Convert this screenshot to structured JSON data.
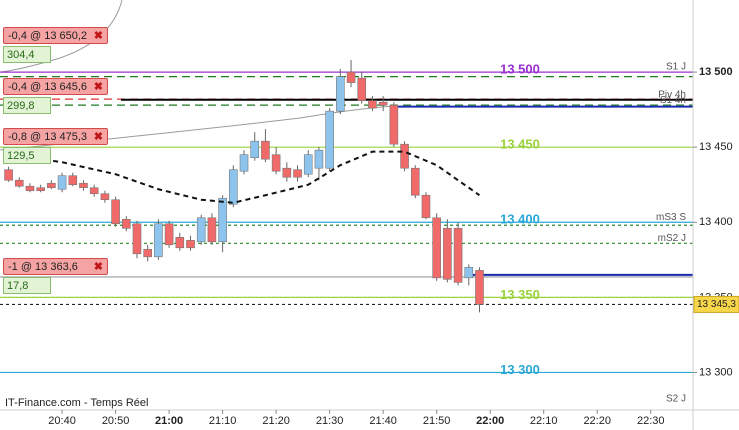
{
  "chart_data": {
    "type": "candlestick",
    "source": "IT-Finance.com - Temps Réel",
    "xlim": [
      1228.4,
      1357.9
    ],
    "ylim": [
      13275,
      13548
    ],
    "xticks": [
      {
        "value": 1240,
        "label": "20:40"
      },
      {
        "value": 1250,
        "label": "20:50"
      },
      {
        "value": 1260,
        "label": "21:00",
        "bold": true
      },
      {
        "value": 1270,
        "label": "21:10"
      },
      {
        "value": 1280,
        "label": "21:20"
      },
      {
        "value": 1290,
        "label": "21:30"
      },
      {
        "value": 1300,
        "label": "21:40"
      },
      {
        "value": 1310,
        "label": "21:50"
      },
      {
        "value": 1320,
        "label": "22:00",
        "bold": true
      },
      {
        "value": 1330,
        "label": "22:10"
      },
      {
        "value": 1340,
        "label": "22:20"
      },
      {
        "value": 1350,
        "label": "22:30"
      }
    ],
    "yticks": [
      {
        "value": 13500,
        "label": "13 500",
        "bold": true
      },
      {
        "value": 13450,
        "label": "13 450"
      },
      {
        "value": 13400,
        "label": "13 400"
      },
      {
        "value": 13350,
        "label": "13 350"
      },
      {
        "value": 13300,
        "label": "13 300"
      }
    ],
    "up_color": "#8cc4ee",
    "down_color": "#f06a6a",
    "candles": {
      "x": [
        1230,
        1232,
        1234,
        1236,
        1238,
        1240,
        1242,
        1244,
        1246,
        1248,
        1250,
        1252,
        1254,
        1256,
        1258,
        1260,
        1262,
        1264,
        1266,
        1268,
        1270,
        1272,
        1274,
        1276,
        1278,
        1280,
        1282,
        1284,
        1286,
        1288,
        1290,
        1292,
        1294,
        1296,
        1298,
        1300,
        1302,
        1304,
        1306,
        1308,
        1310,
        1312,
        1314,
        1316,
        1318
      ],
      "open": [
        13435,
        13428,
        13424,
        13423,
        13426,
        13422,
        13431,
        13426,
        13423,
        13419,
        13415,
        13402,
        13399,
        13382,
        13377,
        13399,
        13390,
        13388,
        13387,
        13403,
        13387,
        13412,
        13434,
        13443,
        13454,
        13445,
        13436,
        13435,
        13432,
        13436,
        13436,
        13474,
        13500,
        13496,
        13481,
        13480,
        13478,
        13452,
        13436,
        13418,
        13403,
        13396,
        13396,
        13363,
        13368
      ],
      "high": [
        13437,
        13430,
        13426,
        13425,
        13428,
        13433,
        13433,
        13428,
        13425,
        13421,
        13417,
        13404,
        13401,
        13385,
        13402,
        13401,
        13393,
        13391,
        13405,
        13406,
        13418,
        13438,
        13448,
        13460,
        13462,
        13450,
        13440,
        13438,
        13448,
        13450,
        13476,
        13502,
        13508,
        13500,
        13484,
        13484,
        13480,
        13454,
        13438,
        13420,
        13406,
        13402,
        13400,
        13372,
        13370
      ],
      "low": [
        13427,
        13423,
        13420,
        13420,
        13422,
        13420,
        13424,
        13421,
        13417,
        13413,
        13397,
        13394,
        13376,
        13374,
        13375,
        13383,
        13381,
        13381,
        13385,
        13385,
        13380,
        13410,
        13432,
        13441,
        13440,
        13432,
        13427,
        13427,
        13430,
        13428,
        13434,
        13472,
        13490,
        13479,
        13474,
        13474,
        13450,
        13434,
        13416,
        13402,
        13361,
        13360,
        13358,
        13358,
        13340
      ],
      "close": [
        13428,
        13424,
        13421,
        13421,
        13423,
        13431,
        13425,
        13423,
        13419,
        13415,
        13399,
        13396,
        13379,
        13377,
        13399,
        13385,
        13383,
        13383,
        13403,
        13387,
        13416,
        13435,
        13445,
        13454,
        13442,
        13434,
        13430,
        13430,
        13445,
        13448,
        13474,
        13497,
        13493,
        13481,
        13476,
        13478,
        13452,
        13436,
        13418,
        13403,
        13363,
        13362,
        13360,
        13370,
        13345.3
      ]
    },
    "ma": {
      "color": "#111111",
      "x": [
        1230,
        1240,
        1250,
        1258,
        1266,
        1272,
        1278,
        1286,
        1292,
        1298,
        1304,
        1310,
        1314,
        1318
      ],
      "values": [
        13445,
        13440,
        13432,
        13422,
        13415,
        13413,
        13418,
        13425,
        13438,
        13447,
        13447,
        13438,
        13428,
        13418
      ]
    },
    "levels": [
      {
        "value": 13500,
        "color": "#9b30d0",
        "dash": "none",
        "label": "13 500",
        "tag": "S1 J"
      },
      {
        "value": 13497,
        "color": "#1f7a1f",
        "dash": "8 5"
      },
      {
        "value": 13482,
        "color": "#e03030",
        "dash": "8 5"
      },
      {
        "value": 13481.6,
        "color": "#000000",
        "dash": "none",
        "from": 1251,
        "tag": "Piv 4h"
      },
      {
        "value": 13478,
        "color": "#1f7a1f",
        "dash": "8 5",
        "tag": "S1 4h"
      },
      {
        "value": 13477,
        "color": "#1a2ab0",
        "dash": "none",
        "from": 1302
      },
      {
        "value": 13450,
        "color": "#9ad23c",
        "dash": "none",
        "label": "13 450"
      },
      {
        "value": 13400,
        "color": "#2aa8d8",
        "dash": "none",
        "label": "13 400",
        "tag": "mS3 S"
      },
      {
        "value": 13398,
        "color": "#2a8a2a",
        "dash": "3 3"
      },
      {
        "value": 13386,
        "color": "#2a8a2a",
        "dash": "3 3",
        "tag": "mS2 J"
      },
      {
        "value": 13365,
        "color": "#1a2ab0",
        "dash": "none",
        "from": 1316
      },
      {
        "value": 13363.6,
        "color": "#999999",
        "dash": "none"
      },
      {
        "value": 13350,
        "color": "#9ad23c",
        "dash": "none",
        "label": "13 350"
      },
      {
        "value": 13345.3,
        "color": "#222222",
        "dash": "3 3"
      },
      {
        "value": 13300,
        "color": "#2aa8d8",
        "dash": "none",
        "label": "13 300"
      },
      {
        "value": 13279,
        "color": "#ffffff",
        "dash": "none",
        "tag": "S2 J"
      }
    ],
    "last": {
      "value": 13345.3,
      "label": "13 345,3"
    },
    "orders": [
      {
        "label": "-0,4 @ 13 650,2",
        "pnl": "304,4"
      },
      {
        "label": "-0,4 @ 13 645,6",
        "pnl": "299,8"
      },
      {
        "label": "-0,8 @ 13 475,3",
        "pnl": "129,5"
      },
      {
        "label": "-1 @ 13 363,6",
        "pnl": "17,8"
      }
    ]
  }
}
